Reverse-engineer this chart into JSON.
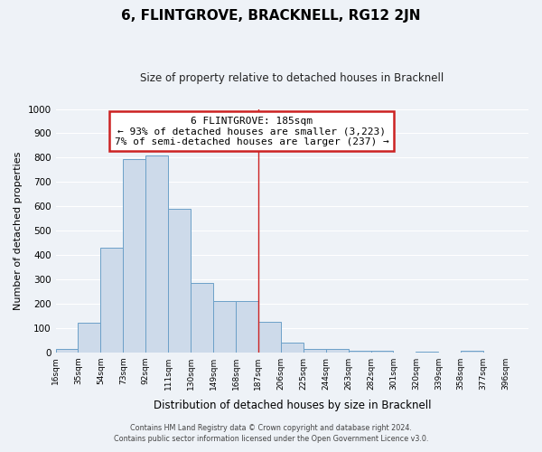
{
  "title": "6, FLINTGROVE, BRACKNELL, RG12 2JN",
  "subtitle": "Size of property relative to detached houses in Bracknell",
  "xlabel": "Distribution of detached houses by size in Bracknell",
  "ylabel": "Number of detached properties",
  "bar_color": "#cddaea",
  "bar_edge_color": "#6ca0c8",
  "background_color": "#eef2f7",
  "grid_color": "#ffffff",
  "bin_edges": [
    16,
    35,
    54,
    73,
    92,
    111,
    130,
    149,
    168,
    187,
    206,
    225,
    244,
    263,
    282,
    301,
    320,
    339,
    358,
    377,
    396
  ],
  "bin_labels": [
    "16sqm",
    "35sqm",
    "54sqm",
    "73sqm",
    "92sqm",
    "111sqm",
    "130sqm",
    "149sqm",
    "168sqm",
    "187sqm",
    "206sqm",
    "225sqm",
    "244sqm",
    "263sqm",
    "282sqm",
    "301sqm",
    "320sqm",
    "339sqm",
    "358sqm",
    "377sqm",
    "396sqm"
  ],
  "bar_heights": [
    15,
    120,
    430,
    795,
    810,
    590,
    285,
    210,
    210,
    125,
    40,
    15,
    12,
    6,
    5,
    0,
    3,
    0,
    8,
    0
  ],
  "vline_x": 187,
  "vline_color": "#cc2222",
  "annotation_title": "6 FLINTGROVE: 185sqm",
  "annotation_line1": "← 93% of detached houses are smaller (3,223)",
  "annotation_line2": "7% of semi-detached houses are larger (237) →",
  "annotation_box_color": "#ffffff",
  "annotation_box_edge": "#cc2222",
  "ylim": [
    0,
    1000
  ],
  "yticks": [
    0,
    100,
    200,
    300,
    400,
    500,
    600,
    700,
    800,
    900,
    1000
  ],
  "footer1": "Contains HM Land Registry data © Crown copyright and database right 2024.",
  "footer2": "Contains public sector information licensed under the Open Government Licence v3.0."
}
